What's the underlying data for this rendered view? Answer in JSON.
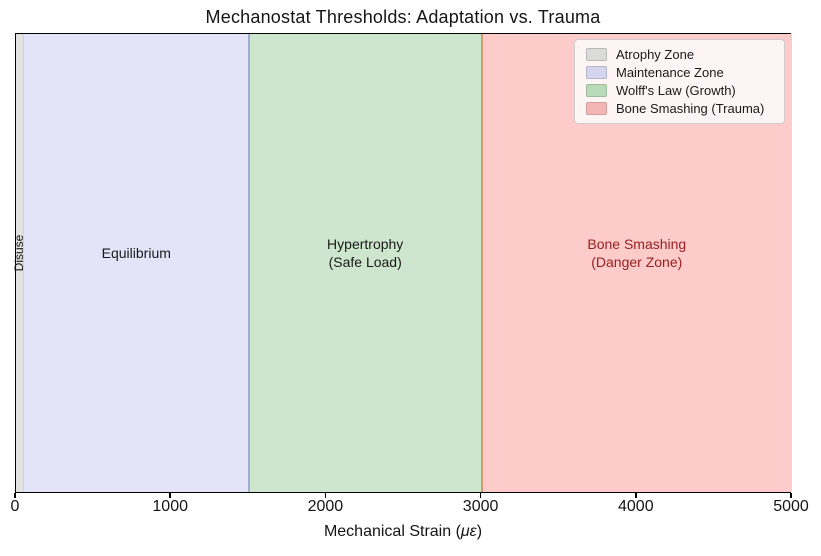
{
  "chart_data": {
    "type": "area",
    "title": "Mechanostat Thresholds: Adaptation vs. Trauma",
    "xlabel": "Mechanical Strain (με)",
    "xlabel_parts": {
      "prefix": "Mechanical Strain (",
      "math": "με",
      "suffix": ")"
    },
    "xlim": [
      0,
      5000
    ],
    "xticks": [
      0,
      1000,
      2000,
      3000,
      4000,
      5000
    ],
    "yaxis": "hidden",
    "grid": false,
    "zones": [
      {
        "name": "Atrophy Zone",
        "from": 0,
        "to": 50,
        "fill": "#e2e2e2",
        "label": "Disuse",
        "label_rotation": -90,
        "label_color": "#1a1a1a"
      },
      {
        "name": "Maintenance Zone",
        "from": 50,
        "to": 1500,
        "fill": "#e4e4f9",
        "label": "Equilibrium",
        "label_rotation": 0,
        "label_color": "#1a1a1a"
      },
      {
        "name": "Wolff's Law (Growth)",
        "from": 1500,
        "to": 3000,
        "fill": "#cee6cd",
        "label": "Hypertrophy\n(Safe Load)",
        "label_rotation": 0,
        "label_color": "#1a1a1a"
      },
      {
        "name": "Bone Smashing (Trauma)",
        "from": 3000,
        "to": 5000,
        "fill": "#fdcbca",
        "label": "Bone Smashing\n(Danger Zone)",
        "label_rotation": 0,
        "label_color": "#9a2020"
      }
    ],
    "threshold_lines": [
      {
        "x": 50,
        "color": "#ccd0ea",
        "width": 1
      },
      {
        "x": 1500,
        "color": "#a2abd2",
        "width": 1.5
      },
      {
        "x": 3000,
        "color": "#d39a6e",
        "width": 2
      }
    ],
    "legend": {
      "position": "upper right",
      "entries": [
        {
          "label": "Atrophy Zone",
          "swatch": "#dbdbd9"
        },
        {
          "label": "Maintenance Zone",
          "swatch": "#d5d5f0"
        },
        {
          "label": "Wolff's Law (Growth)",
          "swatch": "#b6dbb6"
        },
        {
          "label": "Bone Smashing (Trauma)",
          "swatch": "#f6b5b5"
        }
      ]
    },
    "colors": {
      "background": "#ffffff",
      "plot_border": "#000000",
      "text": "#1a1a1a",
      "danger_text": "#9a2020",
      "legend_bg": "#fdf4f4",
      "legend_border": "#d2cccc"
    }
  }
}
